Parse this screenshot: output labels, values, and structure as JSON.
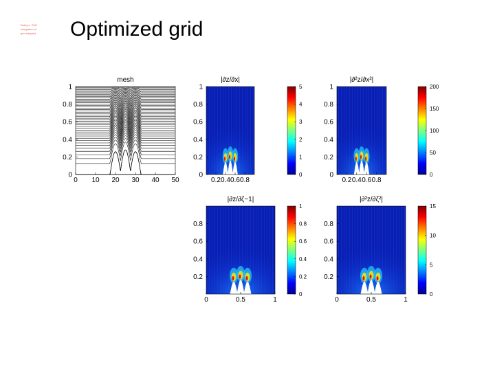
{
  "slide": {
    "title": "Optimized grid",
    "corner_note": [
      "Bathym. PDE",
      "integration of",
      "grid adapted"
    ]
  },
  "chart_data": [
    {
      "type": "line",
      "title": "mesh",
      "xlim": [
        0,
        50
      ],
      "ylim": [
        0,
        1
      ],
      "xticks": [
        "0",
        "10",
        "20",
        "30",
        "40",
        "50"
      ],
      "yticks": [
        "0",
        "0.2",
        "0.4",
        "0.6",
        "0.8",
        "1"
      ],
      "bumps": [
        {
          "center": 20,
          "height": 0.26
        },
        {
          "center": 25,
          "height": 0.28
        },
        {
          "center": 30,
          "height": 0.26
        }
      ],
      "grid_lines": 46,
      "colors": {
        "line": "#000000"
      }
    },
    {
      "type": "heatmap",
      "title": "|∂z/∂x|",
      "xlim": [
        0,
        1
      ],
      "ylim": [
        0,
        1
      ],
      "xticks": [
        "0.2",
        "0.4",
        "0.6",
        "0.8"
      ],
      "yticks": [
        "0",
        "0.2",
        "0.4",
        "0.6",
        "0.8",
        "1"
      ],
      "colorbar": {
        "ticks": [
          "0",
          "1",
          "2",
          "3",
          "4",
          "5"
        ],
        "range": [
          0,
          5
        ]
      },
      "bumps": [
        {
          "center": 0.4,
          "height": 0.14
        },
        {
          "center": 0.5,
          "height": 0.16
        },
        {
          "center": 0.6,
          "height": 0.14
        }
      ]
    },
    {
      "type": "heatmap",
      "title": "|∂²z/∂x²|",
      "xlim": [
        0,
        1
      ],
      "ylim": [
        0,
        1
      ],
      "xticks": [
        "0.2",
        "0.4",
        "0.6",
        "0.8"
      ],
      "yticks": [
        "0",
        "0.2",
        "0.4",
        "0.6",
        "0.8",
        "1"
      ],
      "colorbar": {
        "ticks": [
          "0",
          "50",
          "100",
          "150",
          "200"
        ],
        "range": [
          0,
          200
        ]
      },
      "bumps": [
        {
          "center": 0.4,
          "height": 0.14
        },
        {
          "center": 0.5,
          "height": 0.16
        },
        {
          "center": 0.6,
          "height": 0.14
        }
      ]
    },
    {
      "type": "heatmap",
      "title": "|∂z/∂ζ−1|",
      "xlim": [
        0,
        1
      ],
      "ylim": [
        0,
        1
      ],
      "xticks": [
        "0",
        "0.5",
        "1"
      ],
      "yticks": [
        "0.2",
        "0.4",
        "0.6",
        "0.8"
      ],
      "colorbar": {
        "ticks": [
          "0",
          "0.2",
          "0.4",
          "0.6",
          "0.8",
          "1"
        ],
        "range": [
          0,
          1
        ]
      },
      "bumps": [
        {
          "center": 0.4,
          "height": 0.14
        },
        {
          "center": 0.5,
          "height": 0.16
        },
        {
          "center": 0.6,
          "height": 0.14
        }
      ]
    },
    {
      "type": "heatmap",
      "title": "|∂²z/∂ζ²|",
      "xlim": [
        0,
        1
      ],
      "ylim": [
        0,
        1
      ],
      "xticks": [
        "0",
        "0.5",
        "1"
      ],
      "yticks": [
        "0.2",
        "0.4",
        "0.6",
        "0.8"
      ],
      "colorbar": {
        "ticks": [
          "0",
          "5",
          "10",
          "15"
        ],
        "range": [
          0,
          15
        ]
      },
      "bumps": [
        {
          "center": 0.4,
          "height": 0.14
        },
        {
          "center": 0.5,
          "height": 0.16
        },
        {
          "center": 0.6,
          "height": 0.14
        }
      ]
    }
  ]
}
